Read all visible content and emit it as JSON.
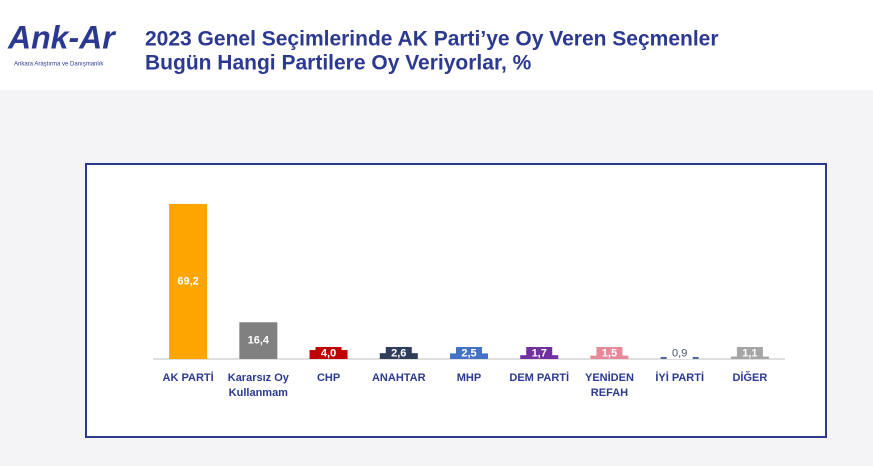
{
  "logo": {
    "name": "Ank-Ar",
    "tagline": "Ankara Araştırma ve Danışmanlık"
  },
  "chart_data": {
    "type": "bar",
    "title": [
      "2023 Genel Seçimlerinde AK Parti’ye Oy Veren Seçmenler",
      "Bugün Hangi Partilere Oy Veriyorlar, %"
    ],
    "categories": [
      "AK PARTİ",
      "Kararsız Oy Kullanmam",
      "CHP",
      "ANAHTAR",
      "MHP",
      "DEM PARTİ",
      "YENİDEN REFAH",
      "İYİ PARTİ",
      "DİĞER"
    ],
    "values": [
      69.2,
      16.4,
      4.0,
      2.6,
      2.5,
      1.7,
      1.5,
      0.9,
      1.1
    ],
    "value_labels": [
      "69,2",
      "16,4",
      "4,0",
      "2,6",
      "2,5",
      "1,7",
      "1,5",
      "0,9",
      "1,1"
    ],
    "colors": [
      "#ffa500",
      "#808080",
      "#c00000",
      "#2f3d5a",
      "#4472c4",
      "#7030a0",
      "#e8899a",
      "#4a6aa0",
      "#a6a6a6"
    ]
  }
}
